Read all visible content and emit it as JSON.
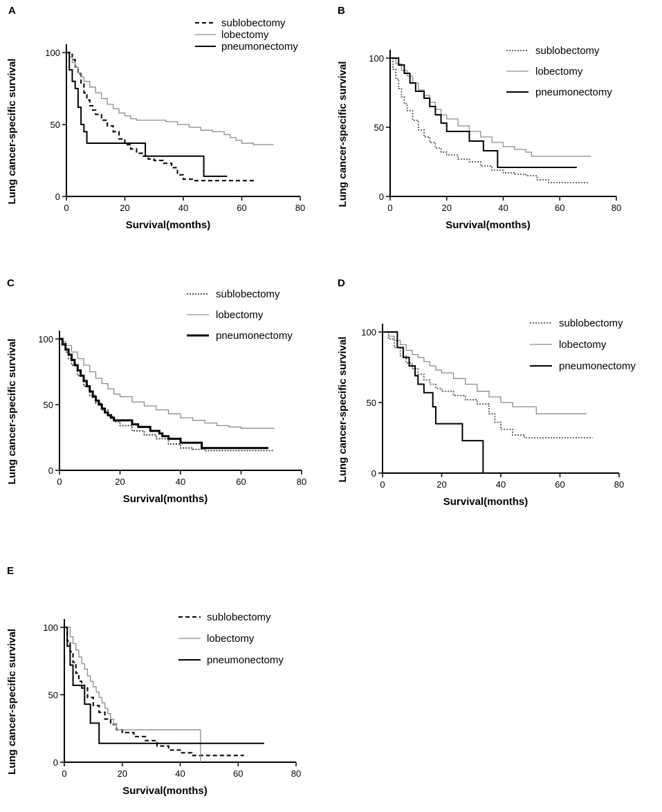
{
  "chart_data": [
    {
      "panel": "A",
      "type": "line",
      "step": true,
      "title": "",
      "xlabel": "Survival(months)",
      "ylabel": "Lung cancer-specific survival",
      "xlim": [
        0,
        80
      ],
      "ylim": [
        0,
        100
      ],
      "xticks": [
        0,
        20,
        40,
        60,
        80
      ],
      "yticks": [
        0,
        50,
        100
      ],
      "legend_position": "top-right",
      "series": [
        {
          "name": "sublobectomy",
          "style": "dashed",
          "color": "#111111",
          "x": [
            0,
            2,
            3,
            4,
            5,
            6,
            7,
            8,
            9,
            10,
            12,
            14,
            16,
            18,
            20,
            22,
            24,
            26,
            28,
            30,
            33,
            36,
            38,
            40,
            44,
            50,
            56,
            60,
            65
          ],
          "y": [
            100,
            95,
            90,
            85,
            78,
            72,
            67,
            63,
            60,
            57,
            53,
            49,
            45,
            40,
            36,
            33,
            30,
            28,
            26,
            25,
            23,
            20,
            15,
            12,
            11,
            11,
            11,
            11,
            11
          ]
        },
        {
          "name": "lobectomy",
          "style": "solid-thin",
          "color": "#8a8a8a",
          "x": [
            0,
            1,
            2,
            3,
            4,
            5,
            6,
            8,
            10,
            12,
            14,
            16,
            18,
            20,
            22,
            24,
            30,
            34,
            38,
            42,
            46,
            50,
            54,
            56,
            58,
            60,
            64,
            71
          ],
          "y": [
            100,
            97,
            93,
            90,
            86,
            83,
            80,
            76,
            72,
            68,
            64,
            61,
            58,
            56,
            54,
            53,
            53,
            52,
            50,
            48,
            46,
            45,
            43,
            41,
            39,
            37,
            36,
            36
          ]
        },
        {
          "name": "pneumonectomy",
          "style": "solid",
          "color": "#000000",
          "x": [
            0,
            1,
            2,
            3,
            4,
            5,
            6,
            7,
            8,
            27,
            47,
            55
          ],
          "y": [
            100,
            88,
            80,
            75,
            62,
            50,
            45,
            37,
            37,
            28,
            14,
            14
          ]
        }
      ]
    },
    {
      "panel": "B",
      "type": "line",
      "step": true,
      "title": "",
      "xlabel": "Survival(months)",
      "ylabel": "Lung cancer-specific survival",
      "xlim": [
        0,
        80
      ],
      "ylim": [
        0,
        100
      ],
      "xticks": [
        0,
        20,
        40,
        60,
        80
      ],
      "yticks": [
        0,
        50,
        100
      ],
      "legend_position": "top-right",
      "series": [
        {
          "name": "sublobectomy",
          "style": "dotted",
          "color": "#555555",
          "x": [
            0,
            1,
            2,
            3,
            4,
            5,
            6,
            8,
            10,
            12,
            14,
            16,
            18,
            20,
            24,
            28,
            32,
            36,
            40,
            44,
            48,
            52,
            56,
            60,
            65,
            70
          ],
          "y": [
            100,
            92,
            85,
            78,
            72,
            67,
            62,
            55,
            48,
            43,
            39,
            35,
            32,
            30,
            27,
            25,
            22,
            19,
            17,
            16,
            15,
            12,
            10,
            10,
            10,
            10
          ]
        },
        {
          "name": "lobectomy",
          "style": "solid-thin",
          "color": "#8a8a8a",
          "x": [
            0,
            2,
            4,
            6,
            8,
            10,
            12,
            14,
            16,
            18,
            20,
            24,
            28,
            32,
            36,
            40,
            44,
            48,
            50,
            55,
            60,
            65,
            71
          ],
          "y": [
            100,
            96,
            91,
            87,
            82,
            77,
            73,
            68,
            63,
            59,
            56,
            51,
            47,
            43,
            39,
            36,
            34,
            32,
            29,
            29,
            29,
            29,
            29
          ]
        },
        {
          "name": "pneumonectomy",
          "style": "solid",
          "color": "#000000",
          "x": [
            0,
            3,
            5,
            7,
            9,
            12,
            14,
            16,
            18,
            20,
            25,
            28,
            30,
            33,
            36,
            38,
            66
          ],
          "y": [
            100,
            95,
            89,
            82,
            76,
            71,
            65,
            59,
            53,
            47,
            47,
            40,
            40,
            33,
            33,
            21,
            21
          ]
        }
      ]
    },
    {
      "panel": "C",
      "type": "line",
      "step": true,
      "title": "",
      "xlabel": "Survival(months)",
      "ylabel": "Lung cancer-specific survival",
      "xlim": [
        0,
        80
      ],
      "ylim": [
        0,
        100
      ],
      "xticks": [
        0,
        20,
        40,
        60,
        80
      ],
      "yticks": [
        0,
        50,
        100
      ],
      "legend_position": "top-right",
      "series": [
        {
          "name": "sublobectomy",
          "style": "dotted",
          "color": "#333333",
          "x": [
            0,
            1,
            2,
            3,
            4,
            6,
            8,
            10,
            12,
            14,
            16,
            18,
            20,
            24,
            28,
            32,
            36,
            40,
            44,
            48,
            52,
            56,
            60,
            65,
            71
          ],
          "y": [
            100,
            95,
            90,
            85,
            80,
            72,
            64,
            57,
            51,
            46,
            41,
            37,
            34,
            30,
            27,
            24,
            20,
            17,
            16,
            15,
            15,
            15,
            15,
            15,
            15
          ]
        },
        {
          "name": "lobectomy",
          "style": "solid-thin",
          "color": "#8a8a8a",
          "x": [
            0,
            1,
            2,
            4,
            6,
            8,
            10,
            12,
            14,
            16,
            18,
            20,
            24,
            28,
            32,
            36,
            40,
            44,
            48,
            52,
            56,
            60,
            65,
            71
          ],
          "y": [
            100,
            98,
            95,
            90,
            85,
            80,
            75,
            70,
            66,
            62,
            58,
            56,
            52,
            49,
            46,
            43,
            40,
            38,
            36,
            34,
            33,
            32,
            32,
            32
          ]
        },
        {
          "name": "pneumonectomy",
          "style": "solid-thick",
          "color": "#000000",
          "x": [
            0,
            1,
            2,
            3,
            4,
            5,
            6,
            7,
            8,
            9,
            10,
            11,
            12,
            13,
            14,
            15,
            16,
            17,
            18,
            20,
            24,
            26,
            30,
            33,
            34,
            36,
            40,
            45,
            47,
            69
          ],
          "y": [
            100,
            96,
            92,
            88,
            84,
            80,
            76,
            72,
            68,
            64,
            60,
            56,
            53,
            50,
            47,
            44,
            42,
            40,
            38,
            38,
            35,
            33,
            30,
            28,
            26,
            24,
            21,
            21,
            17,
            17
          ]
        }
      ]
    },
    {
      "panel": "D",
      "type": "line",
      "step": true,
      "title": "",
      "xlabel": "Survival(months)",
      "ylabel": "Lung cancer-specific survival",
      "xlim": [
        0,
        80
      ],
      "ylim": [
        0,
        100
      ],
      "xticks": [
        0,
        20,
        40,
        60,
        80
      ],
      "yticks": [
        0,
        50,
        100
      ],
      "legend_position": "top-right",
      "series": [
        {
          "name": "sublobectomy",
          "style": "dotted",
          "color": "#555555",
          "x": [
            0,
            2,
            4,
            6,
            8,
            10,
            12,
            14,
            16,
            18,
            20,
            24,
            28,
            32,
            36,
            38,
            40,
            44,
            48,
            52,
            56,
            60,
            65,
            71
          ],
          "y": [
            100,
            95,
            89,
            83,
            78,
            74,
            70,
            66,
            63,
            60,
            58,
            55,
            52,
            49,
            42,
            36,
            31,
            27,
            25,
            25,
            25,
            25,
            25,
            25
          ]
        },
        {
          "name": "lobectomy",
          "style": "solid-thin",
          "color": "#8a8a8a",
          "x": [
            0,
            2,
            4,
            6,
            8,
            10,
            12,
            14,
            16,
            18,
            20,
            24,
            28,
            32,
            36,
            40,
            44,
            48,
            52,
            56,
            60,
            65,
            69
          ],
          "y": [
            100,
            97,
            94,
            91,
            87,
            84,
            82,
            79,
            76,
            73,
            71,
            67,
            63,
            58,
            54,
            50,
            47,
            47,
            42,
            42,
            42,
            42,
            42
          ]
        },
        {
          "name": "pneumonectomy",
          "style": "solid",
          "color": "#000000",
          "x": [
            0,
            5,
            7,
            9,
            11,
            12,
            14,
            16,
            17,
            18,
            24,
            27,
            33,
            34
          ],
          "y": [
            100,
            89,
            82,
            76,
            69,
            63,
            57,
            57,
            47,
            35,
            35,
            23,
            23,
            0
          ]
        }
      ]
    },
    {
      "panel": "E",
      "type": "line",
      "step": true,
      "title": "",
      "xlabel": "Survival(months)",
      "ylabel": "Lung cancer-specific survival",
      "xlim": [
        0,
        80
      ],
      "ylim": [
        0,
        100
      ],
      "xticks": [
        0,
        20,
        40,
        60,
        80
      ],
      "yticks": [
        0,
        50,
        100
      ],
      "legend_position": "top-right",
      "series": [
        {
          "name": "sublobectomy",
          "style": "dashed",
          "color": "#111111",
          "x": [
            0,
            1,
            2,
            3,
            4,
            5,
            6,
            8,
            10,
            12,
            14,
            16,
            18,
            20,
            24,
            28,
            32,
            36,
            40,
            44,
            50,
            56,
            62
          ],
          "y": [
            100,
            90,
            82,
            74,
            66,
            60,
            55,
            48,
            42,
            37,
            32,
            28,
            24,
            22,
            19,
            16,
            12,
            9,
            7,
            5,
            5,
            5,
            5
          ]
        },
        {
          "name": "lobectomy",
          "style": "solid-thin",
          "color": "#8a8a8a",
          "x": [
            0,
            1,
            2,
            3,
            4,
            5,
            6,
            7,
            8,
            9,
            10,
            11,
            12,
            13,
            14,
            15,
            16,
            17,
            18,
            19,
            46,
            47
          ],
          "y": [
            100,
            100,
            93,
            88,
            83,
            78,
            73,
            69,
            64,
            60,
            56,
            52,
            48,
            44,
            40,
            36,
            32,
            28,
            24,
            24,
            24,
            0
          ]
        },
        {
          "name": "pneumonectomy",
          "style": "solid",
          "color": "#000000",
          "x": [
            0,
            1,
            2,
            3,
            5,
            7,
            9,
            12,
            69
          ],
          "y": [
            100,
            86,
            72,
            57,
            57,
            43,
            29,
            14,
            14
          ]
        }
      ]
    }
  ]
}
